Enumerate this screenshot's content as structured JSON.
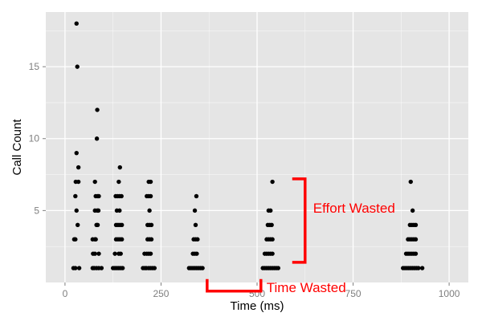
{
  "chart_data": {
    "type": "scatter",
    "title": "",
    "xlabel": "Time (ms)",
    "ylabel": "Call Count",
    "xlim": [
      -50,
      1050
    ],
    "ylim": [
      0,
      18.8
    ],
    "x_ticks": [
      0,
      250,
      500,
      750,
      1000
    ],
    "x_tick_labels": [
      "0",
      "250",
      "500",
      "750",
      "1000"
    ],
    "y_ticks": [
      5,
      10,
      15
    ],
    "y_tick_labels": [
      "5",
      "10",
      "15"
    ],
    "grid": true,
    "point_color": "#000000",
    "panel_background": "#e5e5e5",
    "grid_color": "#ffffff",
    "annotation_color": "#ff0000",
    "points": [
      [
        22,
        1
      ],
      [
        27,
        1
      ],
      [
        37,
        1
      ],
      [
        24,
        3
      ],
      [
        27,
        3
      ],
      [
        30,
        5
      ],
      [
        27,
        6
      ],
      [
        28,
        7
      ],
      [
        35,
        7
      ],
      [
        30,
        9
      ],
      [
        35,
        8
      ],
      [
        33,
        4
      ],
      [
        32,
        15
      ],
      [
        30,
        18
      ],
      [
        72,
        1
      ],
      [
        76,
        1
      ],
      [
        82,
        1
      ],
      [
        88,
        1
      ],
      [
        95,
        1
      ],
      [
        73,
        2
      ],
      [
        78,
        2
      ],
      [
        88,
        2
      ],
      [
        72,
        3
      ],
      [
        78,
        3
      ],
      [
        80,
        3
      ],
      [
        85,
        4
      ],
      [
        82,
        4
      ],
      [
        78,
        5
      ],
      [
        84,
        5
      ],
      [
        87,
        5
      ],
      [
        80,
        6
      ],
      [
        85,
        6
      ],
      [
        88,
        6
      ],
      [
        78,
        7
      ],
      [
        83,
        10
      ],
      [
        84,
        12
      ],
      [
        125,
        1
      ],
      [
        130,
        1
      ],
      [
        135,
        1
      ],
      [
        140,
        1
      ],
      [
        145,
        1
      ],
      [
        150,
        1
      ],
      [
        130,
        2
      ],
      [
        140,
        2
      ],
      [
        145,
        2
      ],
      [
        133,
        3
      ],
      [
        138,
        3
      ],
      [
        143,
        3
      ],
      [
        148,
        3
      ],
      [
        133,
        4
      ],
      [
        138,
        4
      ],
      [
        143,
        4
      ],
      [
        148,
        4
      ],
      [
        135,
        5
      ],
      [
        142,
        5
      ],
      [
        132,
        6
      ],
      [
        137,
        6
      ],
      [
        142,
        6
      ],
      [
        147,
        6
      ],
      [
        140,
        7
      ],
      [
        143,
        8
      ],
      [
        203,
        1
      ],
      [
        208,
        1
      ],
      [
        212,
        1
      ],
      [
        218,
        1
      ],
      [
        223,
        1
      ],
      [
        228,
        1
      ],
      [
        233,
        1
      ],
      [
        207,
        2
      ],
      [
        213,
        2
      ],
      [
        218,
        2
      ],
      [
        223,
        2
      ],
      [
        215,
        3
      ],
      [
        220,
        3
      ],
      [
        225,
        3
      ],
      [
        215,
        4
      ],
      [
        220,
        4
      ],
      [
        225,
        4
      ],
      [
        220,
        5
      ],
      [
        213,
        6
      ],
      [
        218,
        6
      ],
      [
        223,
        6
      ],
      [
        218,
        7
      ],
      [
        223,
        7
      ],
      [
        323,
        1
      ],
      [
        328,
        1
      ],
      [
        333,
        1
      ],
      [
        338,
        1
      ],
      [
        343,
        1
      ],
      [
        348,
        1
      ],
      [
        353,
        1
      ],
      [
        358,
        1
      ],
      [
        333,
        2
      ],
      [
        338,
        2
      ],
      [
        343,
        2
      ],
      [
        335,
        3
      ],
      [
        340,
        3
      ],
      [
        345,
        3
      ],
      [
        340,
        4
      ],
      [
        338,
        5
      ],
      [
        342,
        6
      ],
      [
        515,
        1
      ],
      [
        520,
        1
      ],
      [
        525,
        1
      ],
      [
        530,
        1
      ],
      [
        535,
        1
      ],
      [
        540,
        1
      ],
      [
        545,
        1
      ],
      [
        550,
        1
      ],
      [
        555,
        1
      ],
      [
        520,
        2
      ],
      [
        525,
        2
      ],
      [
        530,
        2
      ],
      [
        535,
        2
      ],
      [
        540,
        2
      ],
      [
        525,
        3
      ],
      [
        530,
        3
      ],
      [
        535,
        3
      ],
      [
        540,
        3
      ],
      [
        528,
        4
      ],
      [
        533,
        4
      ],
      [
        538,
        4
      ],
      [
        530,
        5
      ],
      [
        535,
        5
      ],
      [
        540,
        7
      ],
      [
        880,
        1
      ],
      [
        885,
        1
      ],
      [
        890,
        1
      ],
      [
        895,
        1
      ],
      [
        900,
        1
      ],
      [
        905,
        1
      ],
      [
        910,
        1
      ],
      [
        915,
        1
      ],
      [
        920,
        1
      ],
      [
        930,
        1
      ],
      [
        888,
        2
      ],
      [
        893,
        2
      ],
      [
        898,
        2
      ],
      [
        903,
        2
      ],
      [
        908,
        2
      ],
      [
        913,
        2
      ],
      [
        893,
        3
      ],
      [
        898,
        3
      ],
      [
        903,
        3
      ],
      [
        908,
        3
      ],
      [
        913,
        3
      ],
      [
        898,
        4
      ],
      [
        903,
        4
      ],
      [
        908,
        4
      ],
      [
        913,
        4
      ],
      [
        905,
        5
      ],
      [
        900,
        7
      ]
    ],
    "annotations": [
      {
        "text": "Effort Wasted",
        "shape": "right-bracket",
        "x": 625,
        "y_range": [
          1.4,
          7.2
        ]
      },
      {
        "text": "Time Wasted",
        "shape": "bottom-bracket",
        "x_range": [
          370,
          510
        ],
        "y": -0.6
      }
    ]
  }
}
